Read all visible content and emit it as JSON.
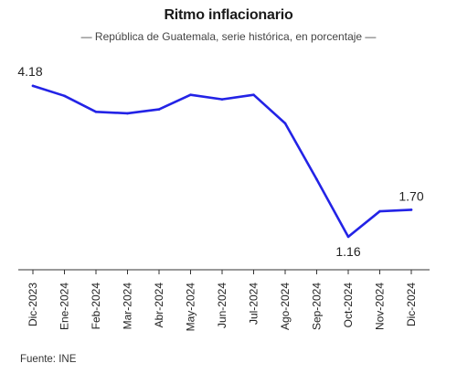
{
  "title": "Ritmo inflacionario",
  "subtitle": "— República de Guatemala, serie histórica, en porcentaje —",
  "source": "Fuente: INE",
  "chart_data": {
    "type": "line",
    "title": "Ritmo inflacionario",
    "subtitle": "República de Guatemala, serie histórica, en porcentaje",
    "xlabel": "",
    "ylabel": "",
    "categories": [
      "Dic-2023",
      "Ene-2024",
      "Feb-2024",
      "Mar-2024",
      "Abr-2024",
      "May-2024",
      "Jun-2024",
      "Jul-2024",
      "Ago-2024",
      "Sep-2024",
      "Oct-2024",
      "Nov-2024",
      "Dic-2024"
    ],
    "series": [
      {
        "values": [
          4.18,
          3.98,
          3.66,
          3.63,
          3.71,
          4.0,
          3.91,
          4.0,
          3.43,
          2.31,
          1.16,
          1.67,
          1.7
        ],
        "color": "#2323e6"
      }
    ],
    "data_labels": [
      {
        "index": 0,
        "text": "4.18"
      },
      {
        "index": 10,
        "text": "1.16"
      },
      {
        "index": 12,
        "text": "1.70"
      }
    ],
    "ylim": [
      0.5,
      4.8
    ],
    "grid": false,
    "legend": "none",
    "axis_color": "#333333"
  }
}
